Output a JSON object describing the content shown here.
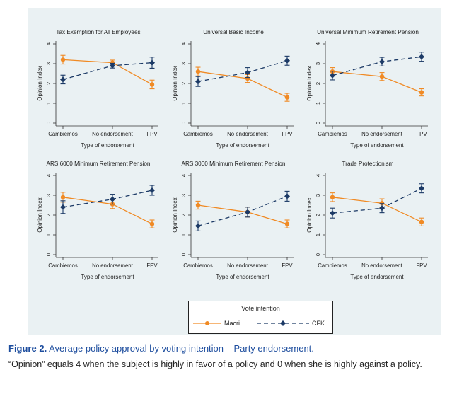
{
  "figure": {
    "legend": {
      "title": "Vote intention",
      "entries": [
        {
          "name": "Macri",
          "color": "#f08a24",
          "marker": "circle",
          "dash": "solid"
        },
        {
          "name": "CFK",
          "color": "#1c3a66",
          "marker": "diamond",
          "dash": "dashed"
        }
      ]
    },
    "caption": {
      "label": "Figure 2.",
      "title": "Average policy approval by voting intention – Party endorsement.",
      "note": "“Opinion” equals 4 when the subject is highly in favor of a policy and 0 when she is highly against a policy."
    }
  },
  "chart_data": [
    {
      "type": "line",
      "title": "Tax Exemption for All Employees",
      "xlabel": "Type of endorsement",
      "ylabel": "Opinion Index",
      "categories": [
        "Cambiemos",
        "No endorsement",
        "FPV"
      ],
      "ylim": [
        0,
        4
      ],
      "yticks": [
        "0",
        "1",
        "2",
        "3",
        "4"
      ],
      "series": [
        {
          "name": "Macri",
          "values": [
            3.2,
            3.05,
            1.95
          ],
          "ci": [
            [
              2.98,
              3.42
            ],
            [
              2.92,
              3.18
            ],
            [
              1.73,
              2.17
            ]
          ]
        },
        {
          "name": "CFK",
          "values": [
            2.2,
            2.9,
            3.05
          ],
          "ci": [
            [
              1.98,
              2.42
            ],
            [
              2.78,
              3.02
            ],
            [
              2.77,
              3.33
            ]
          ]
        }
      ]
    },
    {
      "type": "line",
      "title": "Universal Basic Income",
      "xlabel": "Type of endorsement",
      "ylabel": "Opinion Index",
      "categories": [
        "Cambiemos",
        "No endorsement",
        "FPV"
      ],
      "ylim": [
        0,
        4
      ],
      "yticks": [
        "0",
        "1",
        "2",
        "3",
        "4"
      ],
      "series": [
        {
          "name": "Macri",
          "values": [
            2.6,
            2.25,
            1.3
          ],
          "ci": [
            [
              2.38,
              2.82
            ],
            [
              2.05,
              2.45
            ],
            [
              1.1,
              1.5
            ]
          ]
        },
        {
          "name": "CFK",
          "values": [
            2.1,
            2.55,
            3.15
          ],
          "ci": [
            [
              1.85,
              2.35
            ],
            [
              2.3,
              2.8
            ],
            [
              2.92,
              3.38
            ]
          ]
        }
      ]
    },
    {
      "type": "line",
      "title": "Universal Minimum Retirement Pension",
      "xlabel": "Type of endorsement",
      "ylabel": "Opinion Index",
      "categories": [
        "Cambiemos",
        "No endorsement",
        "FPV"
      ],
      "ylim": [
        0,
        4
      ],
      "yticks": [
        "0",
        "1",
        "2",
        "3",
        "4"
      ],
      "series": [
        {
          "name": "Macri",
          "values": [
            2.6,
            2.35,
            1.55
          ],
          "ci": [
            [
              2.4,
              2.8
            ],
            [
              2.15,
              2.55
            ],
            [
              1.37,
              1.73
            ]
          ]
        },
        {
          "name": "CFK",
          "values": [
            2.4,
            3.1,
            3.35
          ],
          "ci": [
            [
              2.18,
              2.62
            ],
            [
              2.88,
              3.32
            ],
            [
              3.12,
              3.58
            ]
          ]
        }
      ]
    },
    {
      "type": "line",
      "title": "ARS 6000 Minimum Retirement Pension",
      "xlabel": "Type of endorsement",
      "ylabel": "Opinion Index",
      "categories": [
        "Cambiemos",
        "No endorsement",
        "FPV"
      ],
      "ylim": [
        0,
        4
      ],
      "yticks": [
        "0",
        "1",
        "2",
        "3",
        "4"
      ],
      "series": [
        {
          "name": "Macri",
          "values": [
            2.9,
            2.55,
            1.55
          ],
          "ci": [
            [
              2.65,
              3.15
            ],
            [
              2.33,
              2.77
            ],
            [
              1.35,
              1.75
            ]
          ]
        },
        {
          "name": "CFK",
          "values": [
            2.4,
            2.8,
            3.25
          ],
          "ci": [
            [
              2.08,
              2.72
            ],
            [
              2.55,
              3.05
            ],
            [
              3.0,
              3.5
            ]
          ]
        }
      ]
    },
    {
      "type": "line",
      "title": "ARS 3000 Minimum Retirement Pension",
      "xlabel": "Type of endorsement",
      "ylabel": "Opinion Index",
      "categories": [
        "Cambiemos",
        "No endorsement",
        "FPV"
      ],
      "ylim": [
        0,
        4
      ],
      "yticks": [
        "0",
        "1",
        "2",
        "3",
        "4"
      ],
      "series": [
        {
          "name": "Macri",
          "values": [
            2.5,
            2.15,
            1.55
          ],
          "ci": [
            [
              2.3,
              2.7
            ],
            [
              1.9,
              2.4
            ],
            [
              1.35,
              1.75
            ]
          ]
        },
        {
          "name": "CFK",
          "values": [
            1.45,
            2.15,
            2.95
          ],
          "ci": [
            [
              1.2,
              1.7
            ],
            [
              1.9,
              2.4
            ],
            [
              2.7,
              3.2
            ]
          ]
        }
      ]
    },
    {
      "type": "line",
      "title": "Trade Protectionism",
      "xlabel": "Type of endorsement",
      "ylabel": "Opinion Index",
      "categories": [
        "Cambiemos",
        "No endorsement",
        "FPV"
      ],
      "ylim": [
        0,
        4
      ],
      "yticks": [
        "0",
        "1",
        "2",
        "3",
        "4"
      ],
      "series": [
        {
          "name": "Macri",
          "values": [
            2.9,
            2.6,
            1.65
          ],
          "ci": [
            [
              2.68,
              3.12
            ],
            [
              2.38,
              2.82
            ],
            [
              1.45,
              1.85
            ]
          ]
        },
        {
          "name": "CFK",
          "values": [
            2.1,
            2.35,
            3.35
          ],
          "ci": [
            [
              1.85,
              2.35
            ],
            [
              2.12,
              2.58
            ],
            [
              3.12,
              3.58
            ]
          ]
        }
      ]
    }
  ]
}
